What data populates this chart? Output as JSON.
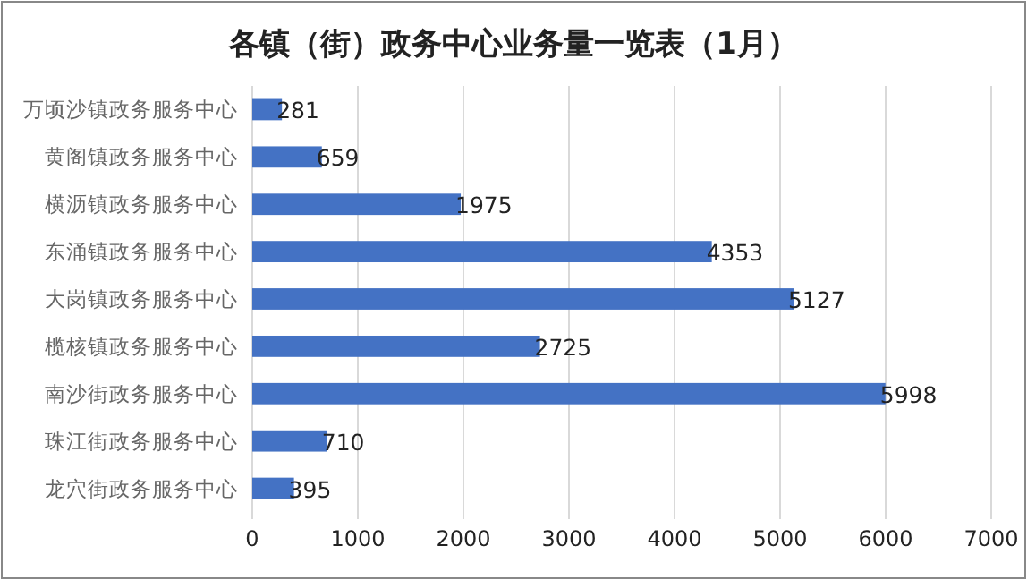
{
  "chart_data": {
    "type": "bar",
    "orientation": "horizontal",
    "title": "各镇（街）政务中心业务量一览表（1月）",
    "categories": [
      "万顷沙镇政务服务中心",
      "黄阁镇政务服务中心",
      "横沥镇政务服务中心",
      "东涌镇政务服务中心",
      "大岗镇政务服务中心",
      "榄核镇政务服务中心",
      "南沙街政务服务中心",
      "珠江街政务服务中心",
      "龙穴街政务服务中心"
    ],
    "values": [
      281,
      659,
      1975,
      4353,
      5127,
      2725,
      5998,
      710,
      395
    ],
    "color": "#4472c4",
    "xlim": [
      0,
      7000
    ],
    "xticks": [
      0,
      1000,
      2000,
      3000,
      4000,
      5000,
      6000,
      7000
    ],
    "grid": "x",
    "data_labels": true
  }
}
